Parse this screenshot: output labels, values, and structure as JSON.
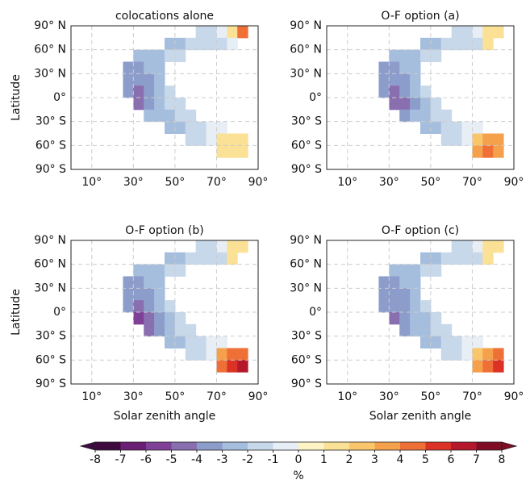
{
  "chart_data": [
    {
      "type": "heatmap",
      "title": "colocations alone",
      "ylabel": "Latitude",
      "x_edges": [
        25,
        30,
        35,
        40,
        45,
        50,
        55,
        60,
        65,
        70,
        75,
        80,
        85
      ],
      "y_edges": [
        90,
        75,
        60,
        45,
        30,
        15,
        0,
        -15,
        -30,
        -45,
        -60,
        -75
      ],
      "values": [
        [
          null,
          null,
          null,
          null,
          null,
          null,
          null,
          -2,
          -2,
          -1,
          1,
          4
        ],
        [
          null,
          null,
          null,
          null,
          -3,
          -3,
          -2,
          -2,
          -2,
          -2,
          -1,
          null
        ],
        [
          null,
          -3,
          -3,
          -3,
          -2,
          -2,
          null,
          null,
          null,
          null,
          null,
          null
        ],
        [
          -4,
          -4,
          -3,
          -3,
          null,
          null,
          null,
          null,
          null,
          null,
          null,
          null
        ],
        [
          -4,
          -4,
          -4,
          -3,
          null,
          null,
          null,
          null,
          null,
          null,
          null,
          null
        ],
        [
          -4,
          -5,
          -4,
          -3,
          -2,
          null,
          null,
          null,
          null,
          null,
          null,
          null
        ],
        [
          null,
          -5,
          -4,
          -3,
          -2,
          -2,
          null,
          null,
          null,
          null,
          null,
          null
        ],
        [
          null,
          null,
          -3,
          -3,
          -3,
          -2,
          -2,
          null,
          null,
          null,
          null,
          null
        ],
        [
          null,
          null,
          null,
          null,
          -3,
          -3,
          -2,
          -2,
          -1,
          -1,
          null,
          null
        ],
        [
          null,
          null,
          null,
          null,
          null,
          null,
          -2,
          -2,
          -1,
          1,
          1,
          1
        ],
        [
          null,
          null,
          null,
          null,
          null,
          null,
          null,
          null,
          null,
          1,
          1,
          1
        ]
      ],
      "xlim": [
        0,
        90
      ],
      "ylim": [
        -90,
        90
      ],
      "xticks": [
        {
          "value": 10,
          "label": "10°"
        },
        {
          "value": 30,
          "label": "30°"
        },
        {
          "value": 50,
          "label": "50°"
        },
        {
          "value": 70,
          "label": "70°"
        },
        {
          "value": 90,
          "label": "90°"
        }
      ],
      "yticks": [
        {
          "value": 90,
          "label": "90° N"
        },
        {
          "value": 60,
          "label": "60° N"
        },
        {
          "value": 30,
          "label": "30° N"
        },
        {
          "value": 0,
          "label": "0°"
        },
        {
          "value": -30,
          "label": "30° S"
        },
        {
          "value": -60,
          "label": "60° S"
        },
        {
          "value": -90,
          "label": "90° S"
        }
      ],
      "grid": true
    },
    {
      "type": "heatmap",
      "title": "O-F option (a)",
      "x_edges": [
        25,
        30,
        35,
        40,
        45,
        50,
        55,
        60,
        65,
        70,
        75,
        80,
        85
      ],
      "y_edges": [
        90,
        75,
        60,
        45,
        30,
        15,
        0,
        -15,
        -30,
        -45,
        -60,
        -75
      ],
      "values": [
        [
          null,
          null,
          null,
          null,
          null,
          null,
          null,
          -2,
          -2,
          -1,
          1,
          1
        ],
        [
          null,
          null,
          null,
          null,
          -3,
          -3,
          -2,
          -2,
          -2,
          -2,
          1,
          null
        ],
        [
          null,
          -3,
          -3,
          -3,
          -2,
          -2,
          null,
          null,
          null,
          null,
          null,
          null
        ],
        [
          -4,
          -4,
          -3,
          -3,
          null,
          null,
          null,
          null,
          null,
          null,
          null,
          null
        ],
        [
          -4,
          -4,
          -4,
          -3,
          null,
          null,
          null,
          null,
          null,
          null,
          null,
          null
        ],
        [
          -4,
          -5,
          -4,
          -3,
          -2,
          null,
          null,
          null,
          null,
          null,
          null,
          null
        ],
        [
          null,
          -5,
          -5,
          -4,
          -3,
          -2,
          null,
          null,
          null,
          null,
          null,
          null
        ],
        [
          null,
          null,
          -4,
          -3,
          -3,
          -2,
          -2,
          null,
          null,
          null,
          null,
          null
        ],
        [
          null,
          null,
          null,
          null,
          -3,
          -3,
          -2,
          -2,
          -1,
          -1,
          null,
          null
        ],
        [
          null,
          null,
          null,
          null,
          null,
          null,
          -2,
          -2,
          -1,
          2,
          3,
          3
        ],
        [
          null,
          null,
          null,
          null,
          null,
          null,
          null,
          null,
          null,
          3,
          4,
          3
        ]
      ],
      "xlim": [
        0,
        90
      ],
      "ylim": [
        -90,
        90
      ],
      "xticks": [
        {
          "value": 10,
          "label": "10°"
        },
        {
          "value": 30,
          "label": "30°"
        },
        {
          "value": 50,
          "label": "50°"
        },
        {
          "value": 70,
          "label": "70°"
        },
        {
          "value": 90,
          "label": "90°"
        }
      ],
      "yticks": [
        {
          "value": 90,
          "label": "90° N"
        },
        {
          "value": 60,
          "label": "60° N"
        },
        {
          "value": 30,
          "label": "30° N"
        },
        {
          "value": 0,
          "label": "0°"
        },
        {
          "value": -30,
          "label": "30° S"
        },
        {
          "value": -60,
          "label": "60° S"
        },
        {
          "value": -90,
          "label": "90° S"
        }
      ],
      "grid": true
    },
    {
      "type": "heatmap",
      "title": "O-F option (b)",
      "ylabel": "Latitude",
      "xlabel": "Solar zenith angle",
      "x_edges": [
        25,
        30,
        35,
        40,
        45,
        50,
        55,
        60,
        65,
        70,
        75,
        80,
        85
      ],
      "y_edges": [
        90,
        75,
        60,
        45,
        30,
        15,
        0,
        -15,
        -30,
        -45,
        -60,
        -75
      ],
      "values": [
        [
          null,
          null,
          null,
          null,
          null,
          null,
          null,
          -2,
          -2,
          -1,
          1,
          1
        ],
        [
          null,
          null,
          null,
          null,
          -3,
          -3,
          -2,
          -2,
          -2,
          -2,
          1,
          null
        ],
        [
          null,
          -3,
          -3,
          -3,
          -2,
          -2,
          null,
          null,
          null,
          null,
          null,
          null
        ],
        [
          -4,
          -4,
          -3,
          -3,
          null,
          null,
          null,
          null,
          null,
          null,
          null,
          null
        ],
        [
          -4,
          -4,
          -4,
          -3,
          null,
          null,
          null,
          null,
          null,
          null,
          null,
          null
        ],
        [
          -4,
          -5,
          -4,
          -3,
          -2,
          null,
          null,
          null,
          null,
          null,
          null,
          null
        ],
        [
          null,
          -6,
          -5,
          -4,
          -3,
          -2,
          null,
          null,
          null,
          null,
          null,
          null
        ],
        [
          null,
          null,
          -5,
          -4,
          -3,
          -2,
          -2,
          null,
          null,
          null,
          null,
          null
        ],
        [
          null,
          null,
          null,
          null,
          -3,
          -3,
          -2,
          -2,
          -1,
          -1,
          null,
          null
        ],
        [
          null,
          null,
          null,
          null,
          null,
          null,
          -2,
          -2,
          -1,
          3,
          4,
          4
        ],
        [
          null,
          null,
          null,
          null,
          null,
          null,
          null,
          null,
          null,
          4,
          5,
          6
        ]
      ],
      "xlim": [
        0,
        90
      ],
      "ylim": [
        -90,
        90
      ],
      "xticks": [
        {
          "value": 10,
          "label": "10°"
        },
        {
          "value": 30,
          "label": "30°"
        },
        {
          "value": 50,
          "label": "50°"
        },
        {
          "value": 70,
          "label": "70°"
        },
        {
          "value": 90,
          "label": "90°"
        }
      ],
      "yticks": [
        {
          "value": 90,
          "label": "90° N"
        },
        {
          "value": 60,
          "label": "60° N"
        },
        {
          "value": 30,
          "label": "30° N"
        },
        {
          "value": 0,
          "label": "0°"
        },
        {
          "value": -30,
          "label": "30° S"
        },
        {
          "value": -60,
          "label": "60° S"
        },
        {
          "value": -90,
          "label": "90° S"
        }
      ],
      "grid": true
    },
    {
      "type": "heatmap",
      "title": "O-F option (c)",
      "xlabel": "Solar zenith angle",
      "x_edges": [
        25,
        30,
        35,
        40,
        45,
        50,
        55,
        60,
        65,
        70,
        75,
        80,
        85
      ],
      "y_edges": [
        90,
        75,
        60,
        45,
        30,
        15,
        0,
        -15,
        -30,
        -45,
        -60,
        -75
      ],
      "values": [
        [
          null,
          null,
          null,
          null,
          null,
          null,
          null,
          -2,
          -2,
          -1,
          1,
          1
        ],
        [
          null,
          null,
          null,
          null,
          -3,
          -3,
          -2,
          -2,
          -2,
          -2,
          1,
          null
        ],
        [
          null,
          -3,
          -3,
          -3,
          -2,
          -2,
          null,
          null,
          null,
          null,
          null,
          null
        ],
        [
          -4,
          -4,
          -3,
          -3,
          null,
          null,
          null,
          null,
          null,
          null,
          null,
          null
        ],
        [
          -4,
          -4,
          -4,
          -3,
          null,
          null,
          null,
          null,
          null,
          null,
          null,
          null
        ],
        [
          -4,
          -4,
          -4,
          -3,
          -2,
          null,
          null,
          null,
          null,
          null,
          null,
          null
        ],
        [
          null,
          -5,
          -4,
          -3,
          -3,
          -2,
          null,
          null,
          null,
          null,
          null,
          null
        ],
        [
          null,
          null,
          -4,
          -3,
          -3,
          -2,
          -2,
          null,
          null,
          null,
          null,
          null
        ],
        [
          null,
          null,
          null,
          null,
          -3,
          -3,
          -2,
          -2,
          -1,
          -1,
          null,
          null
        ],
        [
          null,
          null,
          null,
          null,
          null,
          null,
          -2,
          -2,
          -1,
          2,
          3,
          4
        ],
        [
          null,
          null,
          null,
          null,
          null,
          null,
          null,
          null,
          null,
          3,
          4,
          5
        ]
      ],
      "xlim": [
        0,
        90
      ],
      "ylim": [
        -90,
        90
      ],
      "xticks": [
        {
          "value": 10,
          "label": "10°"
        },
        {
          "value": 30,
          "label": "30°"
        },
        {
          "value": 50,
          "label": "50°"
        },
        {
          "value": 70,
          "label": "70°"
        },
        {
          "value": 90,
          "label": "90°"
        }
      ],
      "yticks": [
        {
          "value": 90,
          "label": "90° N"
        },
        {
          "value": 60,
          "label": "60° N"
        },
        {
          "value": 30,
          "label": "30° N"
        },
        {
          "value": 0,
          "label": "0°"
        },
        {
          "value": -30,
          "label": "30° S"
        },
        {
          "value": -60,
          "label": "60° S"
        },
        {
          "value": -90,
          "label": "90° S"
        }
      ],
      "grid": true
    }
  ],
  "colorbar": {
    "label": "%",
    "levels": [
      -8,
      -7,
      -6,
      -5,
      -4,
      -3,
      -2,
      -1,
      0,
      1,
      2,
      3,
      4,
      5,
      6,
      7,
      8
    ],
    "colors": [
      "#3f0a40",
      "#6b1f74",
      "#7f4197",
      "#8a6fb0",
      "#8d9dcb",
      "#a6bedd",
      "#c7d8ea",
      "#e8eef5",
      "#fdf3c4",
      "#fbe195",
      "#f9c66b",
      "#f5a14c",
      "#ef7036",
      "#dc3226",
      "#b5182a",
      "#7f0d24"
    ]
  }
}
